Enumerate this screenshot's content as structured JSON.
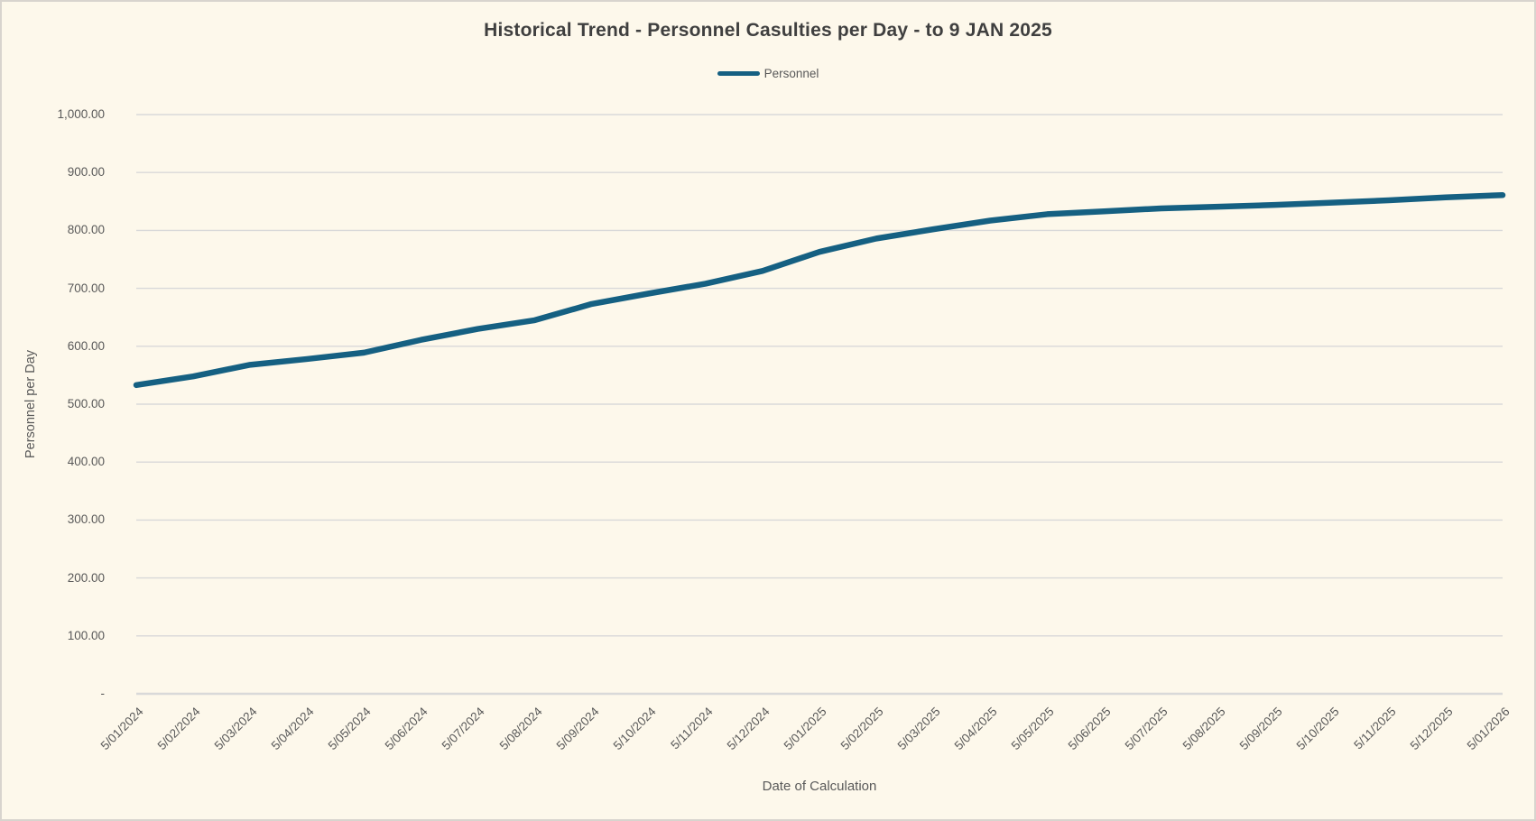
{
  "window": {
    "background_color": "#FDF8EB",
    "border_color": "#D8D4CE"
  },
  "chart_data": {
    "type": "line",
    "title": "Historical Trend - Personnel Casulties per Day - to 9 JAN 2025",
    "xlabel": "Date of Calculation",
    "ylabel": "Personnel per Day",
    "legend": {
      "position": "top-center",
      "entries": [
        "Personnel"
      ]
    },
    "grid": "horizontal-only",
    "gridline_color": "#D9D9D9",
    "axis_text_color": "#595959",
    "title_color": "#3F3F3F",
    "ylim": [
      0,
      1000
    ],
    "y_tick_step": 100,
    "y_tick_labels": [
      "-",
      "100.00",
      "200.00",
      "300.00",
      "400.00",
      "500.00",
      "600.00",
      "700.00",
      "800.00",
      "900.00",
      "1,000.00"
    ],
    "categories": [
      "5/01/2024",
      "5/02/2024",
      "5/03/2024",
      "5/04/2024",
      "5/05/2024",
      "5/06/2024",
      "5/07/2024",
      "5/08/2024",
      "5/09/2024",
      "5/10/2024",
      "5/11/2024",
      "5/12/2024",
      "5/01/2025",
      "5/02/2025",
      "5/03/2025",
      "5/04/2025",
      "5/05/2025",
      "5/06/2025",
      "5/07/2025",
      "5/08/2025",
      "5/09/2025",
      "5/10/2025",
      "5/11/2025",
      "5/12/2025",
      "5/01/2026"
    ],
    "series": [
      {
        "name": "Personnel",
        "color": "#156082",
        "values": [
          533,
          548,
          568,
          578,
          589,
          611,
          630,
          645,
          673,
          691,
          708,
          730,
          763,
          786,
          802,
          817,
          828,
          833,
          838,
          841,
          844,
          848,
          852,
          857,
          861
        ]
      }
    ]
  }
}
